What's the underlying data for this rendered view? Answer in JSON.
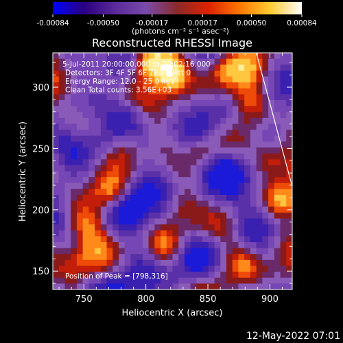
{
  "chart_data": {
    "type": "heatmap",
    "title": "Reconstructed RHESSI Image",
    "xlabel": "Heliocentric X (arcsec)",
    "ylabel": "Heliocentric Y (arcsec)",
    "xlim": [
      725,
      918
    ],
    "ylim": [
      135,
      328
    ],
    "x_ticks": [
      750,
      800,
      850,
      900
    ],
    "y_ticks": [
      150,
      200,
      250,
      300
    ],
    "colorbar": {
      "range": [
        -0.00084,
        0.00084
      ],
      "ticks": [
        "-0.00084",
        "-0.00050",
        "-0.00017",
        "0.00017",
        "0.00050",
        "0.00084"
      ],
      "tick_values": [
        -0.00084,
        -0.0005,
        -0.00017,
        0.00017,
        0.0005,
        0.00084
      ],
      "unit_label": "(photons cm⁻² s⁻¹ asec⁻²)",
      "colors": [
        "#0000ff",
        "#2a0080",
        "#5a2a9a",
        "#7a4aaa",
        "#8a2a2a",
        "#dd2200",
        "#ff7700",
        "#ffcc33",
        "#ffffff"
      ]
    },
    "info_lines": [
      "5-Jul-2011 20:00:00.000 to 20:02:16.000",
      "Detectors: 3F 4F 5F 6F 7F 8F, Att 0",
      "Energy Range: 12.0 - 25.0 keV",
      "Clean     Total counts: 3.56E+03"
    ],
    "peak_label": "Position of Peak = [798,316]",
    "peak": [
      798,
      316
    ],
    "footer_date": "12-May-2022 07:01",
    "limb_line": [
      [
        889,
        328
      ],
      [
        918,
        219
      ]
    ],
    "grid": false
  }
}
